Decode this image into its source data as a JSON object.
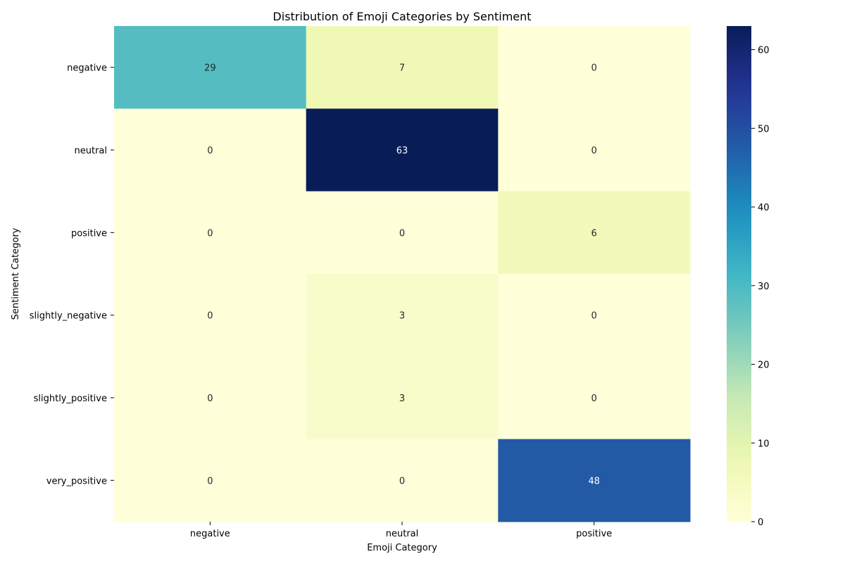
{
  "chart_data": {
    "type": "heatmap",
    "title": "Distribution of Emoji Categories by Sentiment",
    "xlabel": "Emoji Category",
    "ylabel": "Sentiment Category",
    "x_categories": [
      "negative",
      "neutral",
      "positive"
    ],
    "y_categories": [
      "negative",
      "neutral",
      "positive",
      "slightly_negative",
      "slightly_positive",
      "very_positive"
    ],
    "values": [
      [
        29,
        7,
        0
      ],
      [
        0,
        63,
        0
      ],
      [
        0,
        0,
        6
      ],
      [
        0,
        3,
        0
      ],
      [
        0,
        3,
        0
      ],
      [
        0,
        0,
        48
      ]
    ],
    "colormap": "YlGnBu",
    "colorbar": {
      "min": 0,
      "max": 63,
      "ticks": [
        0,
        10,
        20,
        30,
        40,
        50,
        60
      ]
    },
    "annotations": true,
    "grid": false
  }
}
